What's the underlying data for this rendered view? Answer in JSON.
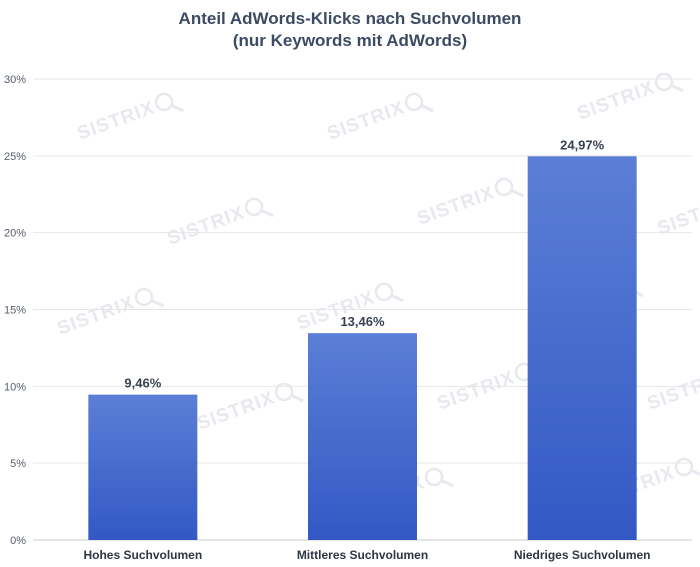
{
  "chart_data": {
    "type": "bar",
    "title": "Anteil AdWords-Klicks nach Suchvolumen",
    "subtitle": "(nur Keywords mit AdWords)",
    "categories": [
      "Hohes Suchvolumen",
      "Mittleres Suchvolumen",
      "Niedriges Suchvolumen"
    ],
    "values": [
      9.46,
      13.46,
      24.97
    ],
    "value_labels": [
      "9,46%",
      "13,46%",
      "24,97%"
    ],
    "ylim": [
      0,
      30
    ],
    "yticks": [
      0,
      5,
      10,
      15,
      20,
      25,
      30
    ],
    "ytick_labels": [
      "0%",
      "5%",
      "10%",
      "15%",
      "20%",
      "25%",
      "30%"
    ],
    "xlabel": "",
    "ylabel": "",
    "grid": true,
    "legend": "none",
    "colors": {
      "bar_top": "#5b7fd6",
      "bar_bottom": "#3358c4",
      "grid": "#e6e6e6"
    }
  },
  "watermark": {
    "text": "SISTRIX",
    "icon": "magnifier-icon"
  }
}
